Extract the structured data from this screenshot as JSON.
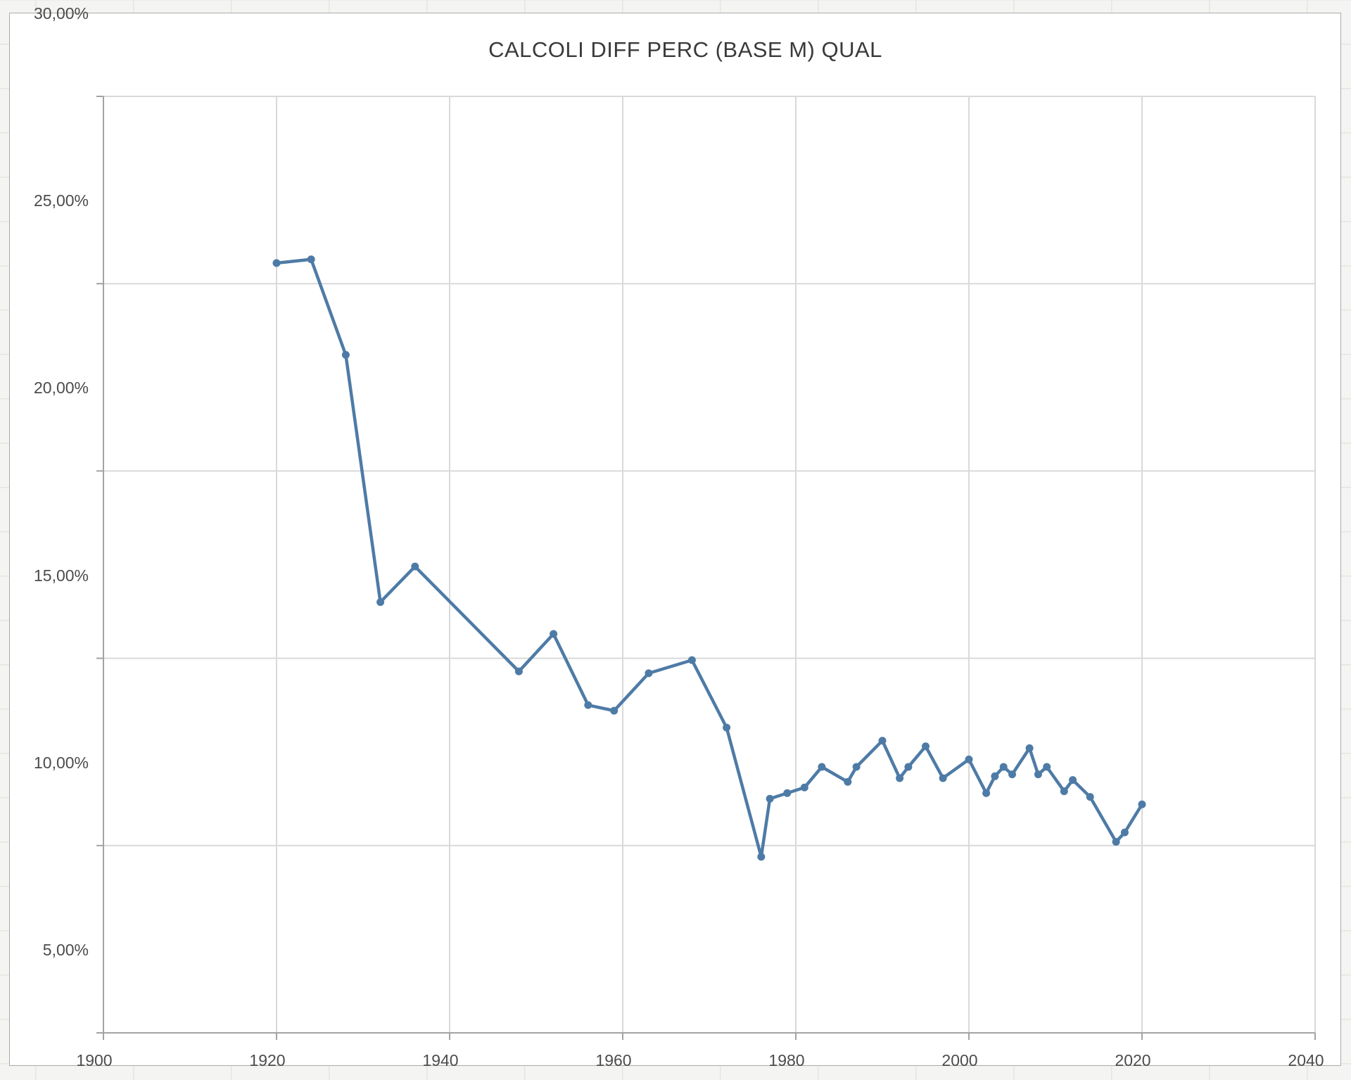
{
  "title": "CALCOLI DIFF PERC (BASE M) QUAL",
  "colors": {
    "line": "#4e7ba6",
    "marker": "#4e7ba6",
    "grid": "#d9d9d9",
    "axis": "#a3a3a3",
    "tick_label": "#4c4c4c",
    "title_text": "#3a3a3a",
    "chart_border": "#ababab",
    "plot_background": "#ffffff",
    "canvas_background": "#f4f4f2"
  },
  "y_axis": {
    "labels": [
      "30,00%",
      "25,00%",
      "20,00%",
      "15,00%",
      "10,00%",
      "5,00%"
    ],
    "values": [
      30,
      25,
      20,
      15,
      10,
      5
    ]
  },
  "x_axis": {
    "labels": [
      "1900",
      "1920",
      "1940",
      "1960",
      "1980",
      "2000",
      "2020",
      "2040"
    ],
    "values": [
      1900,
      1920,
      1940,
      1960,
      1980,
      2000,
      2020,
      2040
    ]
  },
  "chart_data": {
    "type": "line",
    "title": "CALCOLI DIFF PERC (BASE M) QUAL",
    "xlabel": "",
    "ylabel": "",
    "xlim": [
      1900,
      2040
    ],
    "ylim": [
      5,
      30
    ],
    "x_tick_step": 20,
    "y_tick_step": 5,
    "grid": true,
    "legend": false,
    "marker": "circle",
    "x": [
      1920,
      1924,
      1928,
      1932,
      1936,
      1948,
      1952,
      1956,
      1959,
      1963,
      1968,
      1972,
      1976,
      1977,
      1979,
      1981,
      1983,
      1986,
      1987,
      1990,
      1992,
      1993,
      1995,
      1997,
      2000,
      2002,
      2003,
      2004,
      2005,
      2007,
      2008,
      2009,
      2011,
      2012,
      2014,
      2017,
      2018,
      2020
    ],
    "values": [
      25.55,
      25.65,
      23.1,
      16.5,
      17.45,
      14.65,
      15.65,
      13.75,
      13.6,
      14.6,
      14.95,
      13.15,
      9.7,
      11.25,
      11.4,
      11.55,
      12.1,
      11.7,
      12.1,
      12.8,
      11.8,
      12.1,
      12.65,
      11.8,
      12.3,
      11.4,
      11.85,
      12.1,
      11.9,
      12.6,
      11.9,
      12.1,
      11.45,
      11.75,
      11.3,
      10.1,
      10.35,
      11.1
    ]
  }
}
